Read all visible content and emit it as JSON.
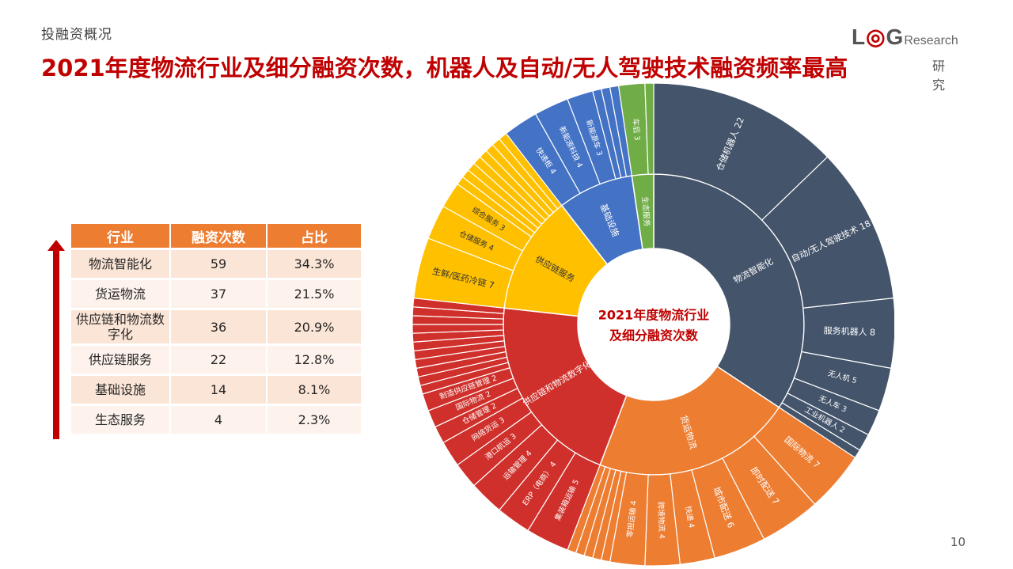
{
  "header": {
    "section": "投融资概况",
    "title": "2021年度物流行业及细分融资次数，机器人及自动/无人驾驶技术融资频率最高"
  },
  "logo": {
    "brand_l": "L",
    "brand_g": "G",
    "brand_rest": "Research",
    "sub": "研究"
  },
  "page_number": "10",
  "table": {
    "headers": [
      "行业",
      "融资次数",
      "占比"
    ],
    "rows": [
      [
        "物流智能化",
        "59",
        "34.3%"
      ],
      [
        "货运物流",
        "37",
        "21.5%"
      ],
      [
        "供应链和物流数字化",
        "36",
        "20.9%"
      ],
      [
        "供应链服务",
        "22",
        "12.8%"
      ],
      [
        "基础设施",
        "14",
        "8.1%"
      ],
      [
        "生态服务",
        "4",
        "2.3%"
      ]
    ]
  },
  "colors": {
    "accent_red": "#c00000",
    "table_header": "#ed7d31",
    "物流智能化": "#44546a",
    "货运物流": "#ed7d31",
    "供应链和物流数字化": "#d0302b",
    "供应链服务": "#ffc000",
    "基础设施": "#4472c4",
    "生态服务": "#70ad47"
  },
  "chart_data": {
    "type": "sunburst",
    "center_label": [
      "2021年度物流行业",
      "及细分融资次数"
    ],
    "categories": [
      {
        "name": "物流智能化",
        "value": 59,
        "children": [
          {
            "name": "仓储机器人",
            "value": 22,
            "label": "仓储机器人 22"
          },
          {
            "name": "自动/无人驾驶技术",
            "value": 18,
            "label": "自动/无人驾驶技术 18"
          },
          {
            "name": "服务机器人",
            "value": 8,
            "label": "服务机器人 8"
          },
          {
            "name": "无人机",
            "value": 5,
            "label": "无人机 5"
          },
          {
            "name": "无人车",
            "value": 3,
            "label": "无人车 3"
          },
          {
            "name": "工业机器人",
            "value": 2,
            "label": "工业机器人 2"
          },
          {
            "name": "",
            "value": 1,
            "label": ""
          }
        ]
      },
      {
        "name": "货运物流",
        "value": 37,
        "children": [
          {
            "name": "国际物流",
            "value": 7,
            "label": "国际物流 7"
          },
          {
            "name": "即时配送",
            "value": 7,
            "label": "即时配送 7"
          },
          {
            "name": "城市配送",
            "value": 6,
            "label": "城市配送 6"
          },
          {
            "name": "快递",
            "value": 4,
            "label": "快递 4"
          },
          {
            "name": "跨境物流",
            "value": 4,
            "label": "跨境物流 4"
          },
          {
            "name": "零担运输",
            "value": 4,
            "label": "零担运输 4"
          },
          {
            "name": "",
            "value": 1,
            "label": ""
          },
          {
            "name": "",
            "value": 1,
            "label": ""
          },
          {
            "name": "",
            "value": 1,
            "label": ""
          },
          {
            "name": "",
            "value": 1,
            "label": ""
          },
          {
            "name": "",
            "value": 1,
            "label": ""
          }
        ]
      },
      {
        "name": "供应链和物流数字化",
        "value": 36,
        "children": [
          {
            "name": "集装箱运输",
            "value": 5,
            "label": "集装箱运输 5"
          },
          {
            "name": "ERP（电商）",
            "value": 4,
            "label": "ERP（电商） 4"
          },
          {
            "name": "运输管理",
            "value": 4,
            "label": "运输管理 4"
          },
          {
            "name": "港口航运",
            "value": 3,
            "label": "港口航运 3"
          },
          {
            "name": "网络货运",
            "value": 3,
            "label": "网络货运 3"
          },
          {
            "name": "仓储管理",
            "value": 2,
            "label": "仓储管理 2"
          },
          {
            "name": "国际物流",
            "value": 2,
            "label": "国际物流 2"
          },
          {
            "name": "制造供应链管理",
            "value": 2,
            "label": "制造供应链管理 2"
          },
          {
            "name": "",
            "value": 1,
            "label": ""
          },
          {
            "name": "",
            "value": 1,
            "label": ""
          },
          {
            "name": "",
            "value": 1,
            "label": ""
          },
          {
            "name": "",
            "value": 1,
            "label": ""
          },
          {
            "name": "",
            "value": 1,
            "label": ""
          },
          {
            "name": "",
            "value": 1,
            "label": ""
          },
          {
            "name": "",
            "value": 1,
            "label": ""
          },
          {
            "name": "",
            "value": 1,
            "label": ""
          },
          {
            "name": "",
            "value": 1,
            "label": ""
          },
          {
            "name": "",
            "value": 1,
            "label": ""
          },
          {
            "name": "",
            "value": 1,
            "label": ""
          }
        ]
      },
      {
        "name": "供应链服务",
        "value": 22,
        "children": [
          {
            "name": "生鲜/医药冷链",
            "value": 7,
            "label": "生鲜/医药冷链 7"
          },
          {
            "name": "仓储服务",
            "value": 4,
            "label": "仓储服务 4"
          },
          {
            "name": "综合服务",
            "value": 3,
            "label": "综合服务 3"
          },
          {
            "name": "",
            "value": 1,
            "label": ""
          },
          {
            "name": "",
            "value": 1,
            "label": ""
          },
          {
            "name": "",
            "value": 1,
            "label": ""
          },
          {
            "name": "",
            "value": 1,
            "label": ""
          },
          {
            "name": "",
            "value": 1,
            "label": ""
          },
          {
            "name": "",
            "value": 1,
            "label": ""
          },
          {
            "name": "",
            "value": 1,
            "label": ""
          },
          {
            "name": "",
            "value": 1,
            "label": ""
          }
        ]
      },
      {
        "name": "基础设施",
        "value": 14,
        "children": [
          {
            "name": "快递柜",
            "value": 4,
            "label": "快递柜 4"
          },
          {
            "name": "新能源科技",
            "value": 4,
            "label": "新能源科技 4"
          },
          {
            "name": "新能源车",
            "value": 3,
            "label": "新能源车 3"
          },
          {
            "name": "",
            "value": 1,
            "label": ""
          },
          {
            "name": "",
            "value": 1,
            "label": ""
          },
          {
            "name": "",
            "value": 1,
            "label": ""
          }
        ]
      },
      {
        "name": "生态服务",
        "value": 4,
        "children": [
          {
            "name": "车后",
            "value": 3,
            "label": "车后 3"
          },
          {
            "name": "",
            "value": 1,
            "label": ""
          }
        ]
      }
    ]
  }
}
